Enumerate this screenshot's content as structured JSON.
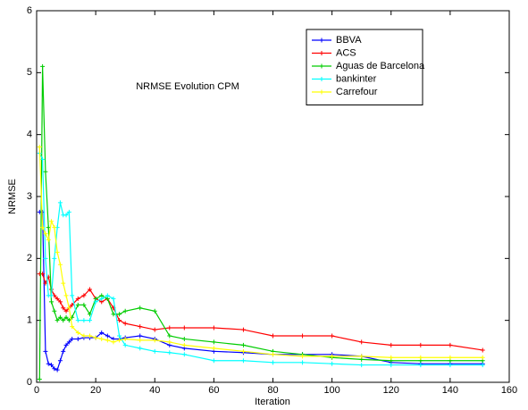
{
  "chart_data": {
    "type": "line",
    "annotation": "NRMSE Evolution CPM",
    "x_label": "Iteration",
    "y_label": "NRMSE",
    "x": [
      1,
      2,
      3,
      4,
      5,
      6,
      7,
      8,
      9,
      10,
      11,
      12,
      14,
      16,
      18,
      20,
      22,
      24,
      26,
      28,
      30,
      35,
      40,
      45,
      50,
      60,
      70,
      80,
      90,
      100,
      110,
      120,
      130,
      140,
      151
    ],
    "series": [
      {
        "name": "BBVA",
        "color": "#0000ff",
        "values": [
          2.75,
          2.75,
          0.5,
          0.3,
          0.28,
          0.22,
          0.2,
          0.35,
          0.5,
          0.6,
          0.65,
          0.7,
          0.7,
          0.72,
          0.72,
          0.72,
          0.8,
          0.75,
          0.7,
          0.7,
          0.72,
          0.75,
          0.7,
          0.6,
          0.55,
          0.5,
          0.48,
          0.45,
          0.45,
          0.45,
          0.42,
          0.32,
          0.3,
          0.3,
          0.3
        ]
      },
      {
        "name": "ACS",
        "color": "#ff0000",
        "values": [
          1.75,
          1.75,
          1.6,
          1.7,
          1.5,
          1.4,
          1.35,
          1.3,
          1.2,
          1.15,
          1.2,
          1.25,
          1.35,
          1.4,
          1.5,
          1.35,
          1.3,
          1.35,
          1.2,
          1.0,
          0.95,
          0.9,
          0.85,
          0.88,
          0.88,
          0.88,
          0.85,
          0.75,
          0.75,
          0.75,
          0.65,
          0.6,
          0.6,
          0.6,
          0.52
        ]
      },
      {
        "name": "Aguas de Barcelona",
        "color": "#00cc00",
        "values": [
          0.05,
          5.1,
          3.4,
          2.5,
          1.3,
          1.15,
          1.0,
          1.05,
          1.0,
          1.05,
          1.0,
          1.05,
          1.25,
          1.25,
          1.1,
          1.35,
          1.4,
          1.35,
          1.1,
          1.1,
          1.15,
          1.2,
          1.15,
          0.75,
          0.7,
          0.65,
          0.6,
          0.5,
          0.45,
          0.4,
          0.37,
          0.35,
          0.35,
          0.35,
          0.35
        ]
      },
      {
        "name": "bankinter",
        "color": "#00ffff",
        "values": [
          3.7,
          3.6,
          2.0,
          1.4,
          1.4,
          2.0,
          2.5,
          2.9,
          2.7,
          2.7,
          2.75,
          1.4,
          1.0,
          1.0,
          1.0,
          1.3,
          1.35,
          1.4,
          1.35,
          0.75,
          0.6,
          0.55,
          0.5,
          0.48,
          0.45,
          0.35,
          0.35,
          0.32,
          0.32,
          0.3,
          0.28,
          0.28,
          0.28,
          0.28,
          0.28
        ]
      },
      {
        "name": "Carrefour",
        "color": "#ffff00",
        "values": [
          3.8,
          2.5,
          2.4,
          2.3,
          2.6,
          2.5,
          2.1,
          1.9,
          1.6,
          1.4,
          1.2,
          0.9,
          0.8,
          0.75,
          0.75,
          0.72,
          0.7,
          0.68,
          0.65,
          0.68,
          0.7,
          0.68,
          0.68,
          0.65,
          0.6,
          0.55,
          0.5,
          0.45,
          0.42,
          0.42,
          0.42,
          0.4,
          0.4,
          0.4,
          0.4
        ]
      }
    ],
    "xlim": [
      0,
      160
    ],
    "ylim": [
      0,
      6
    ],
    "xticks": [
      0,
      20,
      40,
      60,
      80,
      100,
      120,
      140,
      160
    ],
    "yticks": [
      0,
      1,
      2,
      3,
      4,
      5,
      6
    ]
  }
}
